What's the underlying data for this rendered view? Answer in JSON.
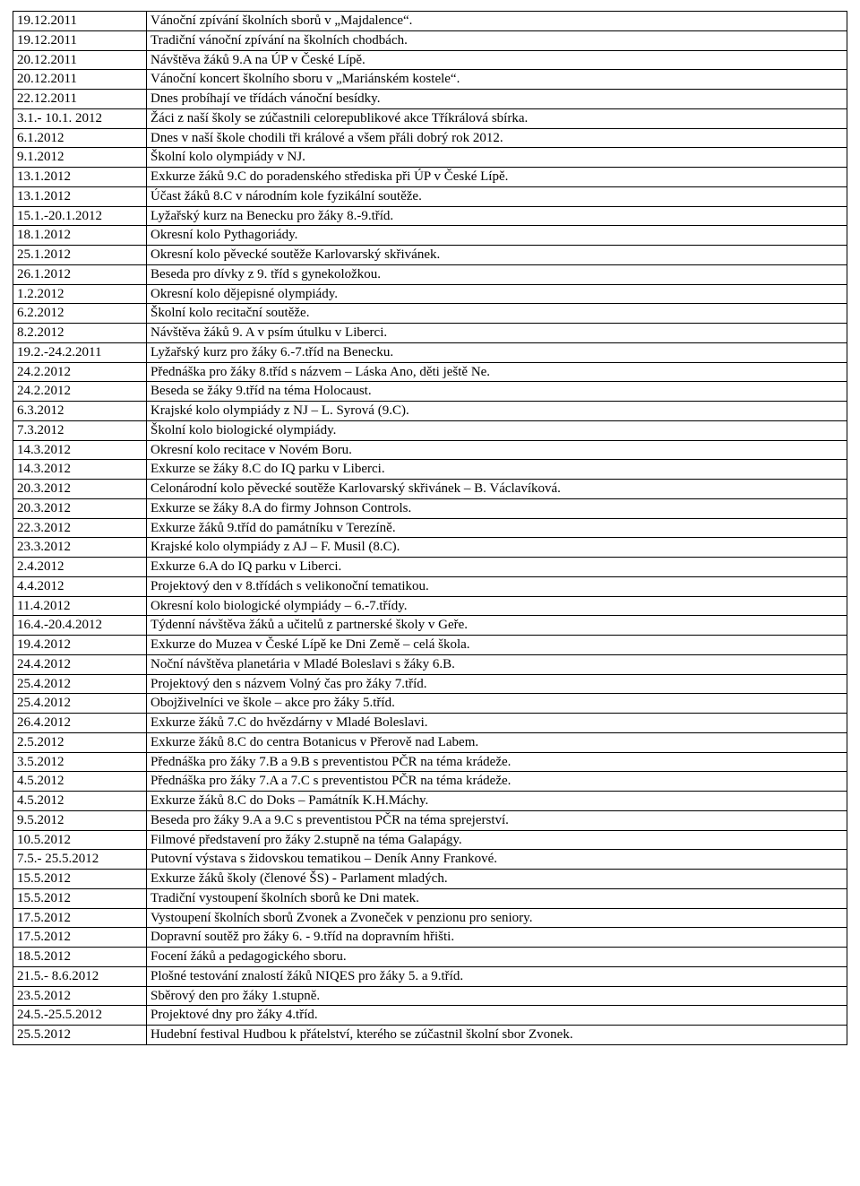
{
  "rows": [
    {
      "date": "19.12.2011",
      "text": "Vánoční zpívání školních sborů v „Majdalence“."
    },
    {
      "date": "19.12.2011",
      "text": "Tradiční vánoční zpívání na školních chodbách."
    },
    {
      "date": "20.12.2011",
      "text": "Návštěva žáků 9.A na ÚP v České Lípě."
    },
    {
      "date": "20.12.2011",
      "text": "Vánoční koncert školního sboru v „Mariánském kostele“."
    },
    {
      "date": "22.12.2011",
      "text": "Dnes probíhají ve třídách vánoční besídky."
    },
    {
      "date": "3.1.- 10.1. 2012",
      "text": "Žáci z naší školy se zúčastnili celorepublikové akce Tříkrálová sbírka."
    },
    {
      "date": "6.1.2012",
      "text": "Dnes v naší škole chodili tři králové a všem přáli dobrý rok 2012."
    },
    {
      "date": "9.1.2012",
      "text": "Školní kolo olympiády v NJ."
    },
    {
      "date": "13.1.2012",
      "text": "Exkurze žáků 9.C do poradenského střediska při ÚP v České Lípě."
    },
    {
      "date": "13.1.2012",
      "text": "Účast žáků 8.C v národním kole fyzikální soutěže."
    },
    {
      "date": "15.1.-20.1.2012",
      "text": "Lyžařský kurz na Benecku pro žáky 8.-9.tříd."
    },
    {
      "date": "18.1.2012",
      "text": "Okresní kolo Pythagoriády."
    },
    {
      "date": "25.1.2012",
      "text": "Okresní kolo pěvecké soutěže Karlovarský skřivánek."
    },
    {
      "date": "26.1.2012",
      "text": "Beseda pro dívky z 9. tříd s gynekoložkou."
    },
    {
      "date": "1.2.2012",
      "text": "Okresní kolo dějepisné olympiády."
    },
    {
      "date": "6.2.2012",
      "text": "Školní kolo recitační soutěže."
    },
    {
      "date": "8.2.2012",
      "text": "Návštěva žáků 9. A v psím útulku v Liberci."
    },
    {
      "date": "19.2.-24.2.2011",
      "text": "Lyžařský kurz pro žáky 6.-7.tříd na Benecku."
    },
    {
      "date": "24.2.2012",
      "text": "Přednáška pro žáky 8.tříd s názvem – Láska Ano, děti ještě Ne."
    },
    {
      "date": "24.2.2012",
      "text": "Beseda se žáky 9.tříd na téma Holocaust."
    },
    {
      "date": "6.3.2012",
      "text": "Krajské kolo olympiády z NJ – L. Syrová (9.C)."
    },
    {
      "date": "7.3.2012",
      "text": "Školní kolo biologické olympiády."
    },
    {
      "date": "14.3.2012",
      "text": "Okresní kolo recitace v Novém Boru."
    },
    {
      "date": "14.3.2012",
      "text": "Exkurze se žáky 8.C do IQ parku v Liberci."
    },
    {
      "date": "20.3.2012",
      "text": "Celonárodní kolo pěvecké soutěže Karlovarský skřivánek – B. Václavíková."
    },
    {
      "date": "20.3.2012",
      "text": "Exkurze se žáky 8.A do firmy Johnson Controls."
    },
    {
      "date": "22.3.2012",
      "text": "Exkurze žáků 9.tříd do památníku v Terezíně."
    },
    {
      "date": "23.3.2012",
      "text": "Krajské kolo olympiády z AJ – F. Musil (8.C)."
    },
    {
      "date": "2.4.2012",
      "text": "Exkurze 6.A do IQ parku v Liberci."
    },
    {
      "date": "4.4.2012",
      "text": "Projektový den v 8.třídách s velikonoční tematikou."
    },
    {
      "date": "11.4.2012",
      "text": "Okresní kolo biologické olympiády – 6.-7.třídy."
    },
    {
      "date": "16.4.-20.4.2012",
      "text": "Týdenní návštěva žáků a učitelů z partnerské školy v Geře."
    },
    {
      "date": "19.4.2012",
      "text": "Exkurze do Muzea v České Lípě ke Dni Země – celá škola."
    },
    {
      "date": "24.4.2012",
      "text": "Noční návštěva planetária v Mladé Boleslavi s žáky 6.B."
    },
    {
      "date": "25.4.2012",
      "text": "Projektový den s názvem Volný čas pro žáky 7.tříd."
    },
    {
      "date": "25.4.2012",
      "text": "Obojživelníci ve škole – akce pro žáky 5.tříd."
    },
    {
      "date": "26.4.2012",
      "text": "Exkurze žáků 7.C do hvězdárny v Mladé Boleslavi."
    },
    {
      "date": "2.5.2012",
      "text": "Exkurze žáků 8.C do centra Botanicus v Přerově nad Labem."
    },
    {
      "date": "3.5.2012",
      "text": "Přednáška pro žáky 7.B a 9.B s preventistou PČR na téma krádeže."
    },
    {
      "date": "4.5.2012",
      "text": "Přednáška pro žáky 7.A a 7.C s preventistou PČR na téma krádeže."
    },
    {
      "date": "4.5.2012",
      "text": "Exkurze žáků 8.C do Doks – Památník K.H.Máchy."
    },
    {
      "date": "9.5.2012",
      "text": "Beseda pro žáky 9.A a 9.C s preventistou PČR na téma sprejerství."
    },
    {
      "date": "10.5.2012",
      "text": "Filmové představení pro žáky 2.stupně na téma Galapágy."
    },
    {
      "date": "7.5.- 25.5.2012",
      "text": "Putovní výstava s židovskou tematikou – Deník Anny Frankové."
    },
    {
      "date": "15.5.2012",
      "text": "Exkurze žáků školy (členové ŠS) - Parlament mladých."
    },
    {
      "date": "15.5.2012",
      "text": "Tradiční vystoupení školních sborů ke Dni matek."
    },
    {
      "date": "17.5.2012",
      "text": "Vystoupení školních sborů Zvonek a Zvoneček v penzionu pro seniory."
    },
    {
      "date": "17.5.2012",
      "text": "Dopravní soutěž pro žáky 6. - 9.tříd na dopravním hřišti."
    },
    {
      "date": "18.5.2012",
      "text": "Focení žáků a pedagogického sboru."
    },
    {
      "date": "21.5.- 8.6.2012",
      "text": "Plošné testování znalostí žáků NIQES pro žáky 5. a 9.tříd."
    },
    {
      "date": "23.5.2012",
      "text": "Sběrový den pro žáky 1.stupně."
    },
    {
      "date": "24.5.-25.5.2012",
      "text": "Projektové dny pro žáky 4.tříd."
    },
    {
      "date": "25.5.2012",
      "text": "Hudební festival Hudbou k přátelství, kterého se zúčastnil školní sbor Zvonek."
    }
  ]
}
